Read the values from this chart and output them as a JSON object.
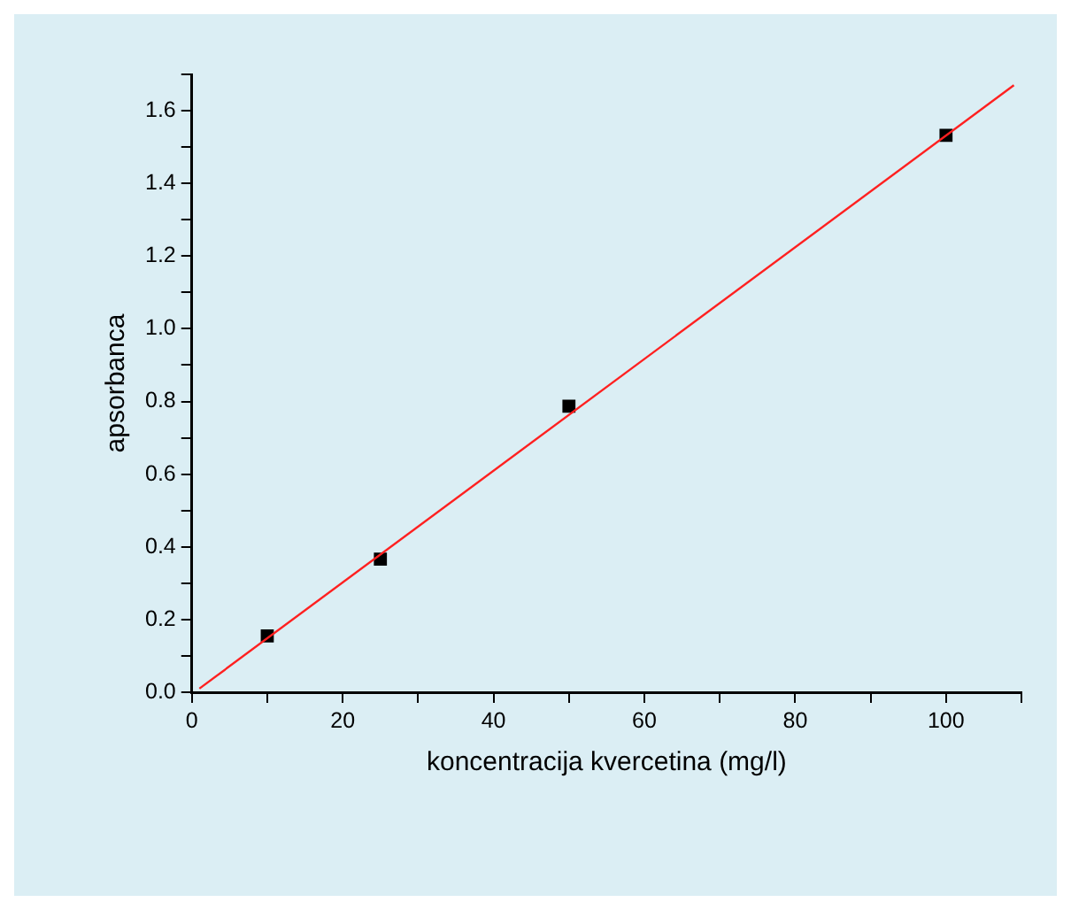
{
  "chart_data": {
    "type": "scatter",
    "xlabel": "koncentracija kvercetina (mg/l)",
    "ylabel": "apsorbanca",
    "xlim": [
      0,
      110
    ],
    "ylim": [
      0,
      1.7
    ],
    "xticks": [
      0,
      {
        "value": 10,
        "label": null
      },
      20,
      {
        "value": 30,
        "label": null
      },
      40,
      {
        "value": 50,
        "label": null
      },
      60,
      {
        "value": 70,
        "label": null
      },
      80,
      {
        "value": 90,
        "label": null
      },
      100,
      {
        "value": 110,
        "label": null
      }
    ],
    "yticks": [
      {
        "value": 0,
        "label": "0.0"
      },
      {
        "value": 0.1,
        "label": null
      },
      0.2,
      {
        "value": 0.3,
        "label": null
      },
      0.4,
      {
        "value": 0.5,
        "label": null
      },
      0.6,
      {
        "value": 0.7,
        "label": null
      },
      0.8,
      {
        "value": 0.9,
        "label": null
      },
      {
        "value": 1,
        "label": "1.0"
      },
      {
        "value": 1.1,
        "label": null
      },
      1.2,
      {
        "value": 1.3,
        "label": null
      },
      1.4,
      {
        "value": 1.5,
        "label": null
      },
      1.6,
      {
        "value": 1.7,
        "label": null
      }
    ],
    "series": [
      {
        "type": "scatter",
        "color": "#000000",
        "x": [
          10,
          25,
          50,
          100
        ],
        "values": [
          0.155,
          0.366,
          0.787,
          1.532
        ],
        "marker": "square"
      },
      {
        "type": "line",
        "color": "#ff2020",
        "x": [
          1,
          109
        ],
        "values": [
          0.01,
          1.67
        ],
        "marker": "none",
        "line_style": "solid"
      }
    ],
    "grid": false,
    "legend": false
  }
}
